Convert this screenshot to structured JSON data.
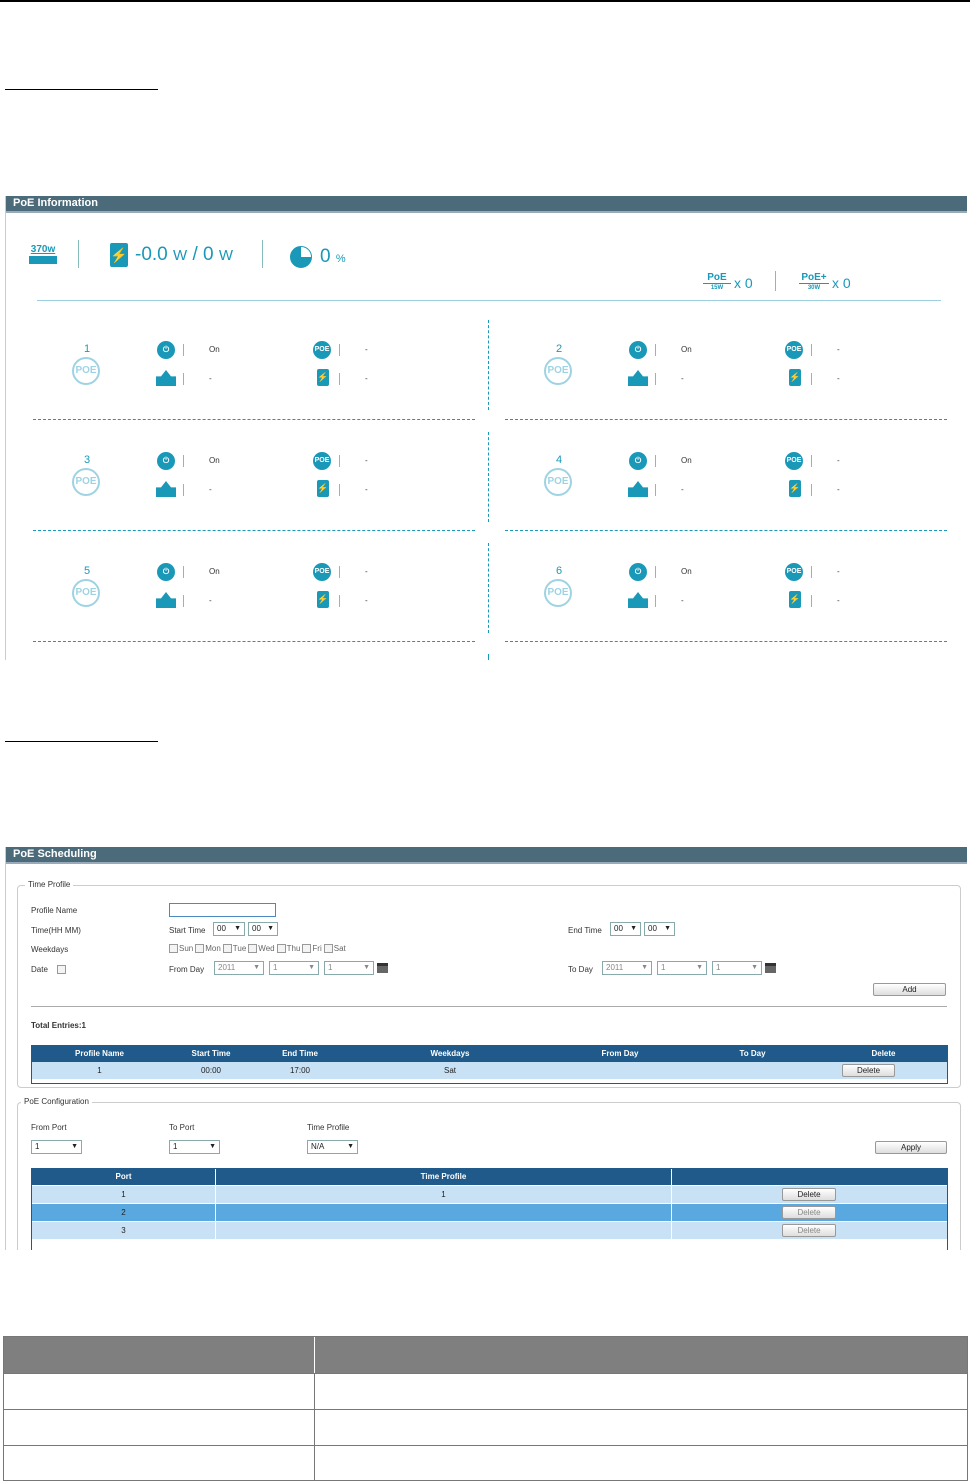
{
  "poe_info": {
    "title": "PoE Information",
    "budget_label": "370w",
    "power_value": "-0.0",
    "power_unit1": "W",
    "power_max": "/ 0",
    "power_unit2": "W",
    "usage_value": "0",
    "usage_unit": "%",
    "poe_15w_label": "PoE",
    "poe_15w_sub": "15W",
    "poe_15w_count": "x 0",
    "poe_30w_label": "PoE+",
    "poe_30w_sub": "30W",
    "poe_30w_count": "x 0",
    "ports": [
      {
        "num": "1",
        "status": "On",
        "class": "-",
        "priority": "-",
        "power": "-"
      },
      {
        "num": "2",
        "status": "On",
        "class": "-",
        "priority": "-",
        "power": "-"
      },
      {
        "num": "3",
        "status": "On",
        "class": "-",
        "priority": "-",
        "power": "-"
      },
      {
        "num": "4",
        "status": "On",
        "class": "-",
        "priority": "-",
        "power": "-"
      },
      {
        "num": "5",
        "status": "On",
        "class": "-",
        "priority": "-",
        "power": "-"
      },
      {
        "num": "6",
        "status": "On",
        "class": "-",
        "priority": "-",
        "power": "-"
      }
    ],
    "poe_icon_text": "POE"
  },
  "poe_sched": {
    "title": "PoE Scheduling",
    "time_profile_legend": "Time Profile",
    "profile_name_label": "Profile Name",
    "time_label": "Time(HH MM)",
    "start_time_label": "Start Time",
    "end_time_label": "End Time",
    "start_hh": "00",
    "start_mm": "00",
    "end_hh": "00",
    "end_mm": "00",
    "weekdays_label": "Weekdays",
    "days": [
      "Sun",
      "Mon",
      "Tue",
      "Wed",
      "Thu",
      "Fri",
      "Sat"
    ],
    "date_label": "Date",
    "from_day_label": "From Day",
    "to_day_label": "To Day",
    "from_year": "2011",
    "from_month": "1",
    "from_day": "1",
    "to_year": "2011",
    "to_month": "1",
    "to_day": "1",
    "add_btn": "Add",
    "total_entries": "Total Entries:1",
    "table_headers": [
      "Profile Name",
      "Start Time",
      "End Time",
      "Weekdays",
      "From Day",
      "To Day",
      "Delete"
    ],
    "table_row": {
      "name": "1",
      "start": "00:00",
      "end": "17:00",
      "weekdays": "Sat",
      "from": "",
      "to": "",
      "delete": "Delete"
    },
    "config_legend": "PoE Configuration",
    "from_port_label": "From Port",
    "to_port_label": "To Port",
    "time_profile_label": "Time Profile",
    "from_port_value": "1",
    "to_port_value": "1",
    "time_profile_value": "N/A",
    "apply_btn": "Apply",
    "config_headers": [
      "Port",
      "Time Profile",
      ""
    ],
    "config_rows": [
      {
        "port": "1",
        "profile": "1",
        "delete": "Delete"
      },
      {
        "port": "2",
        "profile": "",
        "delete": "Delete"
      },
      {
        "port": "3",
        "profile": "",
        "delete": "Delete"
      }
    ]
  },
  "colors": {
    "accent": "#1a98b8",
    "header_bar": "#4c6b7a",
    "table_header": "#1f5a8a",
    "row_a": "#c9e1f5",
    "row_b": "#5aa8e0"
  }
}
